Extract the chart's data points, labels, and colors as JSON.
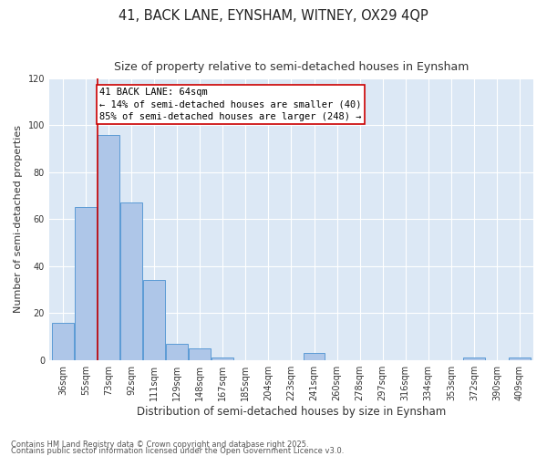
{
  "title": "41, BACK LANE, EYNSHAM, WITNEY, OX29 4QP",
  "subtitle": "Size of property relative to semi-detached houses in Eynsham",
  "xlabel": "Distribution of semi-detached houses by size in Eynsham",
  "ylabel": "Number of semi-detached properties",
  "footnote1": "Contains HM Land Registry data © Crown copyright and database right 2025.",
  "footnote2": "Contains public sector information licensed under the Open Government Licence v3.0.",
  "categories": [
    "36sqm",
    "55sqm",
    "73sqm",
    "92sqm",
    "111sqm",
    "129sqm",
    "148sqm",
    "167sqm",
    "185sqm",
    "204sqm",
    "223sqm",
    "241sqm",
    "260sqm",
    "278sqm",
    "297sqm",
    "316sqm",
    "334sqm",
    "353sqm",
    "372sqm",
    "390sqm",
    "409sqm"
  ],
  "values": [
    16,
    65,
    96,
    67,
    34,
    7,
    5,
    1,
    0,
    0,
    0,
    3,
    0,
    0,
    0,
    0,
    0,
    0,
    1,
    0,
    1
  ],
  "bar_color": "#aec6e8",
  "bar_edge_color": "#5b9bd5",
  "plot_bg_color": "#dce8f5",
  "figure_bg_color": "#ffffff",
  "grid_color": "#ffffff",
  "annotation_text": "41 BACK LANE: 64sqm\n← 14% of semi-detached houses are smaller (40)\n85% of semi-detached houses are larger (248) →",
  "annotation_box_color": "#ffffff",
  "annotation_box_edge": "#cc0000",
  "vline_x": 1.5,
  "vline_color": "#cc0000",
  "ylim": [
    0,
    120
  ],
  "yticks": [
    0,
    20,
    40,
    60,
    80,
    100,
    120
  ],
  "title_fontsize": 10.5,
  "subtitle_fontsize": 9,
  "xlabel_fontsize": 8.5,
  "ylabel_fontsize": 8,
  "tick_fontsize": 7,
  "annotation_fontsize": 7.5,
  "footnote_fontsize": 6
}
